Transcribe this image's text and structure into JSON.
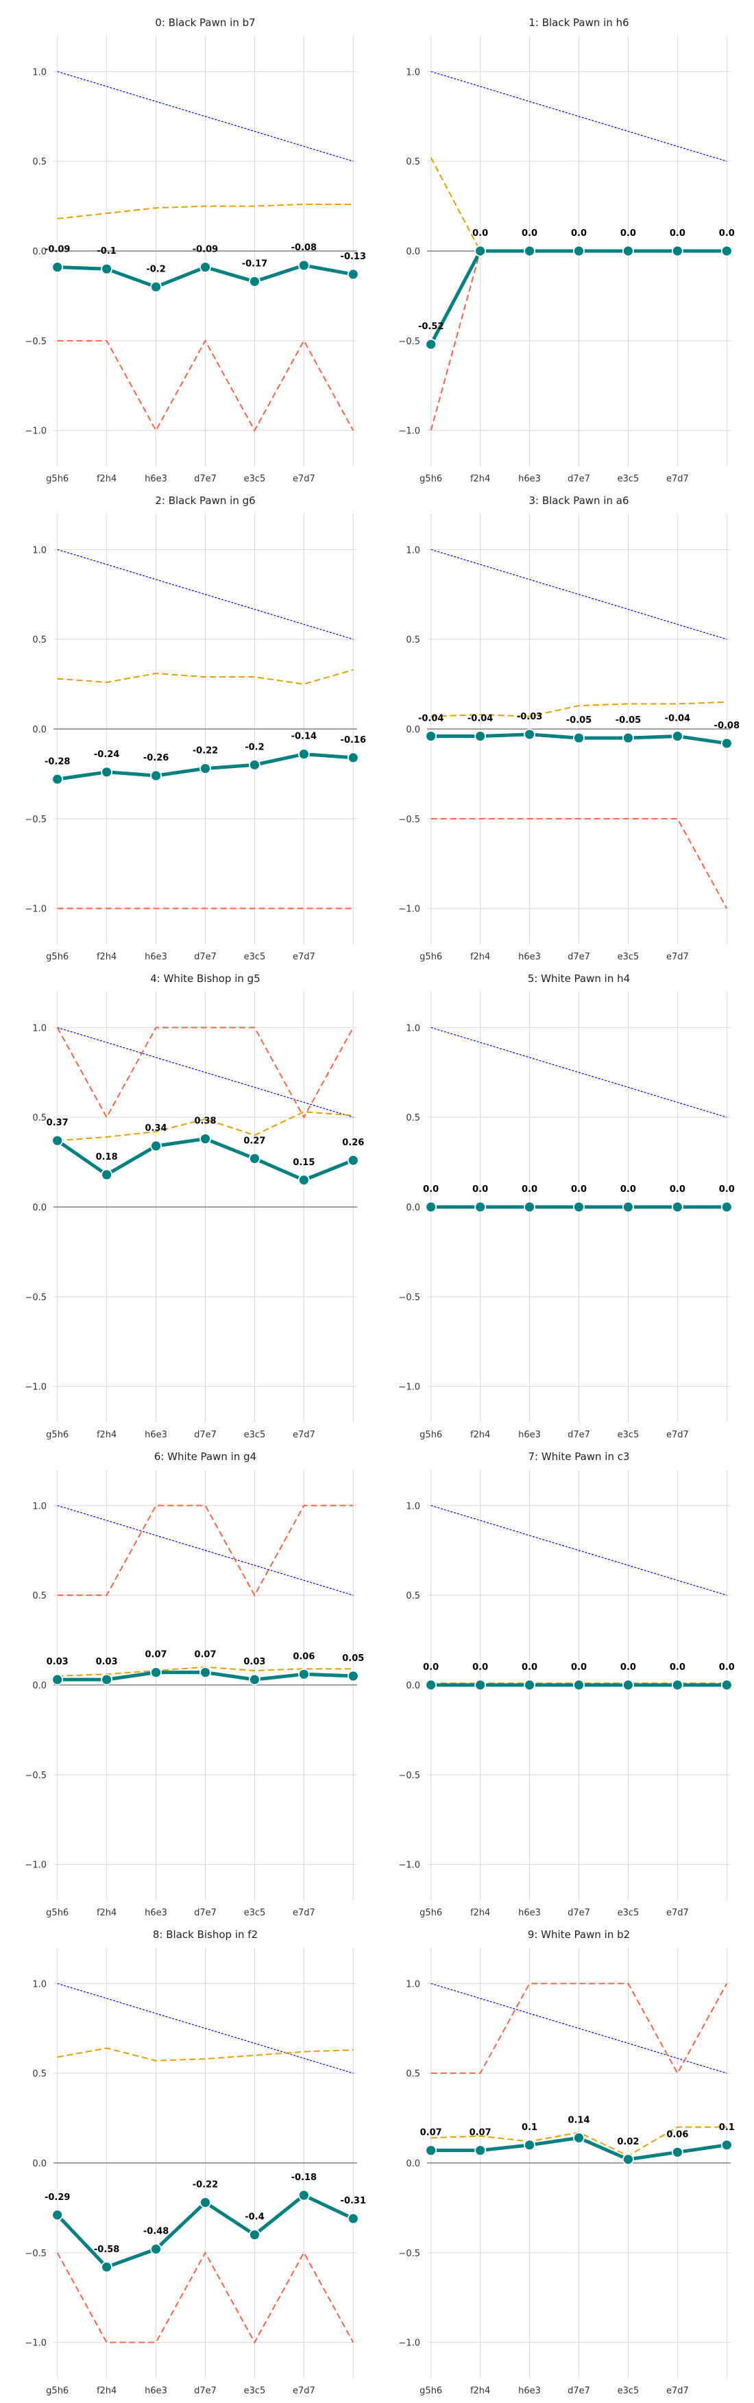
{
  "colors": {
    "score": "#008080",
    "dashed_orange": "#e69f00",
    "dashed_red": "#ff6347",
    "dotted_blue": "#0000ff",
    "grid": "#d9d9d9",
    "zero_line": "#808080"
  },
  "chart_data": [
    {
      "type": "line",
      "title": "0: Black Pawn in b7",
      "categories": [
        "g5h6",
        "f2h4",
        "h6e3",
        "d7e7",
        "e3c5",
        "e7d7",
        ""
      ],
      "ylim": [
        -1.2,
        1.2
      ],
      "yticks": [
        "1.0",
        "0.5",
        "0.0",
        "−0.5",
        "−1.0"
      ],
      "grid": true,
      "series": [
        {
          "style": "solid-markers",
          "color": "#008080",
          "labels_shown": true,
          "values": [
            -0.09,
            -0.1,
            -0.2,
            -0.09,
            -0.17,
            -0.08,
            -0.13
          ]
        },
        {
          "style": "dashed",
          "color": "#e69f00",
          "values": [
            0.18,
            0.21,
            0.24,
            0.25,
            0.25,
            0.26,
            0.26
          ]
        },
        {
          "style": "dashed",
          "color": "#ff6347",
          "values": [
            -0.5,
            -0.5,
            -1.0,
            -0.5,
            -1.0,
            -0.5,
            -1.0
          ]
        },
        {
          "style": "dotted",
          "color": "#0000ff",
          "values": [
            1.0,
            0.917,
            0.833,
            0.75,
            0.667,
            0.583,
            0.5
          ]
        }
      ],
      "point_labels": [
        "-0.09",
        "-0.1",
        "-0.2",
        "-0.09",
        "-0.17",
        "-0.08",
        "-0.13"
      ]
    },
    {
      "type": "line",
      "title": "1: Black Pawn in h6",
      "categories": [
        "g5h6",
        "f2h4",
        "h6e3",
        "d7e7",
        "e3c5",
        "e7d7",
        ""
      ],
      "ylim": [
        -1.2,
        1.2
      ],
      "yticks": [
        "1.0",
        "0.5",
        "0.0",
        "−0.5",
        "−1.0"
      ],
      "grid": true,
      "series": [
        {
          "style": "solid-markers",
          "color": "#008080",
          "labels_shown": true,
          "values": [
            -0.52,
            0.0,
            0.0,
            0.0,
            0.0,
            0.0,
            0.0
          ]
        },
        {
          "style": "dashed",
          "color": "#e69f00",
          "values": [
            0.52,
            0.0,
            0.0,
            0.0,
            0.0,
            0.0,
            0.0
          ]
        },
        {
          "style": "dashed",
          "color": "#ff6347",
          "values": [
            -1.0,
            0.0,
            0.0,
            0.0,
            0.0,
            0.0,
            0.0
          ]
        },
        {
          "style": "dotted",
          "color": "#0000ff",
          "values": [
            1.0,
            0.917,
            0.833,
            0.75,
            0.667,
            0.583,
            0.5
          ]
        }
      ],
      "point_labels": [
        "-0.52",
        "0.0",
        "0.0",
        "0.0",
        "0.0",
        "0.0",
        "0.0"
      ]
    },
    {
      "type": "line",
      "title": "2: Black Pawn in g6",
      "categories": [
        "g5h6",
        "f2h4",
        "h6e3",
        "d7e7",
        "e3c5",
        "e7d7",
        ""
      ],
      "ylim": [
        -1.2,
        1.2
      ],
      "yticks": [
        "1.0",
        "0.5",
        "0.0",
        "−0.5",
        "−1.0"
      ],
      "grid": true,
      "series": [
        {
          "style": "solid-markers",
          "color": "#008080",
          "labels_shown": true,
          "values": [
            -0.28,
            -0.24,
            -0.26,
            -0.22,
            -0.2,
            -0.14,
            -0.16
          ]
        },
        {
          "style": "dashed",
          "color": "#e69f00",
          "values": [
            0.28,
            0.26,
            0.31,
            0.29,
            0.29,
            0.25,
            0.33
          ]
        },
        {
          "style": "dashed",
          "color": "#ff6347",
          "values": [
            -1.0,
            -1.0,
            -1.0,
            -1.0,
            -1.0,
            -1.0,
            -1.0
          ]
        },
        {
          "style": "dotted",
          "color": "#0000ff",
          "values": [
            1.0,
            0.917,
            0.833,
            0.75,
            0.667,
            0.583,
            0.5
          ]
        }
      ],
      "point_labels": [
        "-0.28",
        "-0.24",
        "-0.26",
        "-0.22",
        "-0.2",
        "-0.14",
        "-0.16"
      ]
    },
    {
      "type": "line",
      "title": "3: Black Pawn in a6",
      "categories": [
        "g5h6",
        "f2h4",
        "h6e3",
        "d7e7",
        "e3c5",
        "e7d7",
        ""
      ],
      "ylim": [
        -1.2,
        1.2
      ],
      "yticks": [
        "1.0",
        "0.5",
        "0.0",
        "−0.5",
        "−1.0"
      ],
      "grid": true,
      "series": [
        {
          "style": "solid-markers",
          "color": "#008080",
          "labels_shown": true,
          "values": [
            -0.04,
            -0.04,
            -0.03,
            -0.05,
            -0.05,
            -0.04,
            -0.08
          ]
        },
        {
          "style": "dashed",
          "color": "#e69f00",
          "values": [
            0.07,
            0.08,
            0.07,
            0.13,
            0.14,
            0.14,
            0.15
          ]
        },
        {
          "style": "dashed",
          "color": "#ff6347",
          "values": [
            -0.5,
            -0.5,
            -0.5,
            -0.5,
            -0.5,
            -0.5,
            -1.0
          ]
        },
        {
          "style": "dotted",
          "color": "#0000ff",
          "values": [
            1.0,
            0.917,
            0.833,
            0.75,
            0.667,
            0.583,
            0.5
          ]
        }
      ],
      "point_labels": [
        "-0.04",
        "-0.04",
        "-0.03",
        "-0.05",
        "-0.05",
        "-0.04",
        "-0.08"
      ]
    },
    {
      "type": "line",
      "title": "4: White Bishop in g5",
      "categories": [
        "g5h6",
        "f2h4",
        "h6e3",
        "d7e7",
        "e3c5",
        "e7d7",
        ""
      ],
      "ylim": [
        -1.2,
        1.2
      ],
      "yticks": [
        "1.0",
        "0.5",
        "0.0",
        "−0.5",
        "−1.0"
      ],
      "grid": true,
      "series": [
        {
          "style": "solid-markers",
          "color": "#008080",
          "labels_shown": true,
          "values": [
            0.37,
            0.18,
            0.34,
            0.38,
            0.27,
            0.15,
            0.26
          ]
        },
        {
          "style": "dashed",
          "color": "#e69f00",
          "values": [
            0.37,
            0.39,
            0.42,
            0.49,
            0.4,
            0.53,
            0.51
          ]
        },
        {
          "style": "dashed",
          "color": "#ff6347",
          "values": [
            1.0,
            0.5,
            1.0,
            1.0,
            1.0,
            0.5,
            1.0
          ]
        },
        {
          "style": "dotted",
          "color": "#0000ff",
          "values": [
            1.0,
            0.917,
            0.833,
            0.75,
            0.667,
            0.583,
            0.5
          ]
        }
      ],
      "point_labels": [
        "0.37",
        "0.18",
        "0.34",
        "0.38",
        "0.27",
        "0.15",
        "0.26"
      ]
    },
    {
      "type": "line",
      "title": "5: White Pawn in h4",
      "categories": [
        "g5h6",
        "f2h4",
        "h6e3",
        "d7e7",
        "e3c5",
        "e7d7",
        ""
      ],
      "ylim": [
        -1.2,
        1.2
      ],
      "yticks": [
        "1.0",
        "0.5",
        "0.0",
        "−0.5",
        "−1.0"
      ],
      "grid": true,
      "series": [
        {
          "style": "solid-markers",
          "color": "#008080",
          "labels_shown": true,
          "values": [
            0.0,
            0.0,
            0.0,
            0.0,
            0.0,
            0.0,
            0.0
          ]
        },
        {
          "style": "dashed",
          "color": "#e69f00",
          "values": [
            0.0,
            0.0,
            0.0,
            0.0,
            0.0,
            0.0,
            0.0
          ]
        },
        {
          "style": "dashed",
          "color": "#ff6347",
          "values": [
            0.0,
            0.0,
            0.0,
            0.0,
            0.0,
            0.0,
            0.0
          ]
        },
        {
          "style": "dotted",
          "color": "#0000ff",
          "values": [
            1.0,
            0.917,
            0.833,
            0.75,
            0.667,
            0.583,
            0.5
          ]
        }
      ],
      "point_labels": [
        "0.0",
        "0.0",
        "0.0",
        "0.0",
        "0.0",
        "0.0",
        "0.0"
      ]
    },
    {
      "type": "line",
      "title": "6: White Pawn in g4",
      "categories": [
        "g5h6",
        "f2h4",
        "h6e3",
        "d7e7",
        "e3c5",
        "e7d7",
        ""
      ],
      "ylim": [
        -1.2,
        1.2
      ],
      "yticks": [
        "1.0",
        "0.5",
        "0.0",
        "−0.5",
        "−1.0"
      ],
      "grid": true,
      "series": [
        {
          "style": "solid-markers",
          "color": "#008080",
          "labels_shown": true,
          "values": [
            0.03,
            0.03,
            0.07,
            0.07,
            0.03,
            0.06,
            0.05
          ]
        },
        {
          "style": "dashed",
          "color": "#e69f00",
          "values": [
            0.05,
            0.06,
            0.08,
            0.1,
            0.08,
            0.09,
            0.09
          ]
        },
        {
          "style": "dashed",
          "color": "#ff6347",
          "values": [
            0.5,
            0.5,
            1.0,
            1.0,
            0.5,
            1.0,
            1.0
          ]
        },
        {
          "style": "dotted",
          "color": "#0000ff",
          "values": [
            1.0,
            0.917,
            0.833,
            0.75,
            0.667,
            0.583,
            0.5
          ]
        }
      ],
      "point_labels": [
        "0.03",
        "0.03",
        "0.07",
        "0.07",
        "0.03",
        "0.06",
        "0.05"
      ]
    },
    {
      "type": "line",
      "title": "7: White Pawn in c3",
      "categories": [
        "g5h6",
        "f2h4",
        "h6e3",
        "d7e7",
        "e3c5",
        "e7d7",
        ""
      ],
      "ylim": [
        -1.2,
        1.2
      ],
      "yticks": [
        "1.0",
        "0.5",
        "0.0",
        "−0.5",
        "−1.0"
      ],
      "grid": true,
      "series": [
        {
          "style": "solid-markers",
          "color": "#008080",
          "labels_shown": true,
          "values": [
            0.0,
            0.0,
            0.0,
            0.0,
            0.0,
            0.0,
            0.0
          ]
        },
        {
          "style": "dashed",
          "color": "#e69f00",
          "values": [
            0.01,
            0.01,
            0.01,
            0.01,
            0.01,
            0.01,
            0.01
          ]
        },
        {
          "style": "dashed",
          "color": "#ff6347",
          "values": [
            0.0,
            0.0,
            0.0,
            0.0,
            0.0,
            0.0,
            0.0
          ]
        },
        {
          "style": "dotted",
          "color": "#0000ff",
          "values": [
            1.0,
            0.917,
            0.833,
            0.75,
            0.667,
            0.583,
            0.5
          ]
        }
      ],
      "point_labels": [
        "0.0",
        "0.0",
        "0.0",
        "0.0",
        "0.0",
        "0.0",
        "0.0"
      ]
    },
    {
      "type": "line",
      "title": "8: Black Bishop in f2",
      "categories": [
        "g5h6",
        "f2h4",
        "h6e3",
        "d7e7",
        "e3c5",
        "e7d7",
        ""
      ],
      "ylim": [
        -1.2,
        1.2
      ],
      "yticks": [
        "1.0",
        "0.5",
        "0.0",
        "−0.5",
        "−1.0"
      ],
      "grid": true,
      "series": [
        {
          "style": "solid-markers",
          "color": "#008080",
          "labels_shown": true,
          "values": [
            -0.29,
            -0.58,
            -0.48,
            -0.22,
            -0.4,
            -0.18,
            -0.31
          ]
        },
        {
          "style": "dashed",
          "color": "#e69f00",
          "values": [
            0.59,
            0.64,
            0.57,
            0.58,
            0.6,
            0.62,
            0.63
          ]
        },
        {
          "style": "dashed",
          "color": "#ff6347",
          "values": [
            -0.5,
            -1.0,
            -1.0,
            -0.5,
            -1.0,
            -0.5,
            -1.0
          ]
        },
        {
          "style": "dotted",
          "color": "#0000ff",
          "values": [
            1.0,
            0.917,
            0.833,
            0.75,
            0.667,
            0.583,
            0.5
          ]
        }
      ],
      "point_labels": [
        "-0.29",
        "-0.58",
        "-0.48",
        "-0.22",
        "-0.4",
        "-0.18",
        "-0.31"
      ]
    },
    {
      "type": "line",
      "title": "9: White Pawn in b2",
      "categories": [
        "g5h6",
        "f2h4",
        "h6e3",
        "d7e7",
        "e3c5",
        "e7d7",
        ""
      ],
      "ylim": [
        -1.2,
        1.2
      ],
      "yticks": [
        "1.0",
        "0.5",
        "0.0",
        "−0.5",
        "−1.0"
      ],
      "grid": true,
      "series": [
        {
          "style": "solid-markers",
          "color": "#008080",
          "labels_shown": true,
          "values": [
            0.07,
            0.07,
            0.1,
            0.14,
            0.02,
            0.06,
            0.1
          ]
        },
        {
          "style": "dashed",
          "color": "#e69f00",
          "values": [
            0.14,
            0.15,
            0.12,
            0.17,
            0.04,
            0.2,
            0.2
          ]
        },
        {
          "style": "dashed",
          "color": "#ff6347",
          "values": [
            0.5,
            0.5,
            1.0,
            1.0,
            1.0,
            0.5,
            1.0
          ]
        },
        {
          "style": "dotted",
          "color": "#0000ff",
          "values": [
            1.0,
            0.917,
            0.833,
            0.75,
            0.667,
            0.583,
            0.5
          ]
        }
      ],
      "point_labels": [
        "0.07",
        "0.07",
        "0.1",
        "0.14",
        "0.02",
        "0.06",
        "0.1"
      ]
    }
  ]
}
